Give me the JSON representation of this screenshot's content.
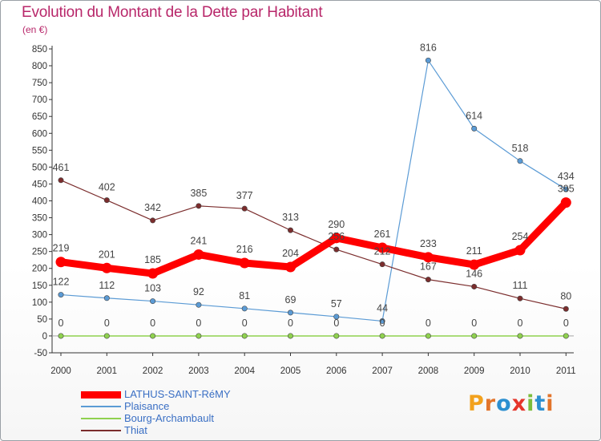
{
  "header": {
    "title": "Evolution du Montant de la Dette par Habitant",
    "subtitle": "(en €)"
  },
  "logo": {
    "letters": [
      "P",
      "r",
      "o",
      "x",
      "i",
      "t",
      "i"
    ],
    "colors": [
      "#f2a11d",
      "#e2742b",
      "#2c8fd0",
      "#e5352b",
      "#7bbd3c",
      "#2c8fd0",
      "#e2742b"
    ]
  },
  "chart_data": {
    "type": "line",
    "title": "Evolution du Montant de la Dette par Habitant",
    "ylabel": "(en €)",
    "xlabel": "",
    "ylim": [
      -50,
      850
    ],
    "yticks": [
      -50,
      0,
      50,
      100,
      150,
      200,
      250,
      300,
      350,
      400,
      450,
      500,
      550,
      600,
      650,
      700,
      750,
      800,
      850
    ],
    "categories": [
      "2000",
      "2001",
      "2002",
      "2003",
      "2004",
      "2005",
      "2006",
      "2007",
      "2008",
      "2009",
      "2010",
      "2011"
    ],
    "grid": false,
    "legend_position": "bottom-left",
    "series": [
      {
        "name": "LATHUS-SAINT-RéMY",
        "color": "#ff0000",
        "width": 9,
        "values": [
          219,
          201,
          185,
          241,
          216,
          204,
          290,
          261,
          233,
          211,
          254,
          395
        ],
        "labels": [
          "219",
          "201",
          "185",
          "241",
          "216",
          "204",
          "290",
          "261",
          "233",
          "211",
          "254",
          "395"
        ]
      },
      {
        "name": "Plaisance",
        "color": "#5b9bd5",
        "width": 1.2,
        "values": [
          122,
          112,
          103,
          92,
          81,
          69,
          57,
          44,
          816,
          614,
          518,
          434
        ],
        "labels": [
          "122",
          "112",
          "103",
          "92",
          "81",
          "69",
          "57",
          "44",
          "816",
          "614",
          "518",
          "434"
        ]
      },
      {
        "name": "Bourg-Archambault",
        "color": "#8fd14f",
        "width": 1.5,
        "values": [
          0,
          0,
          0,
          0,
          0,
          0,
          0,
          0,
          0,
          0,
          0,
          0
        ],
        "labels": [
          "0",
          "0",
          "0",
          "0",
          "0",
          "0",
          "0",
          "0",
          "0",
          "0",
          "0",
          "0"
        ]
      },
      {
        "name": "Thiat",
        "color": "#7b2d2d",
        "width": 1.2,
        "values": [
          461,
          402,
          342,
          385,
          377,
          313,
          256,
          212,
          167,
          146,
          111,
          80
        ],
        "labels": [
          "461",
          "402",
          "342",
          "385",
          "377",
          "313",
          "256",
          "212",
          "167",
          "146",
          "111",
          "80"
        ]
      }
    ]
  }
}
